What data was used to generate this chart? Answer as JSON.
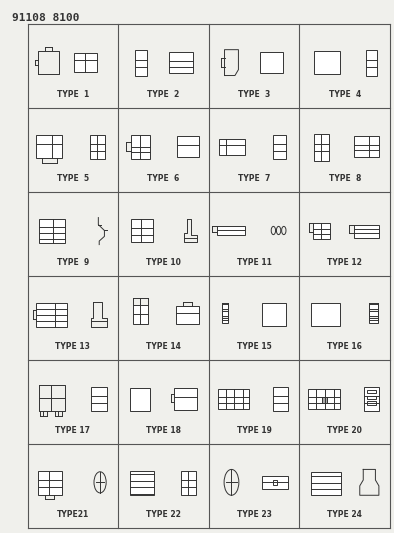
{
  "title": "91108 8100",
  "background": "#f0f0ec",
  "grid_rows": 6,
  "grid_cols": 4,
  "cell_labels": [
    "TYPE  1",
    "TYPE  2",
    "TYPE  3",
    "TYPE  4",
    "TYPE  5",
    "TYPE  6",
    "TYPE  7",
    "TYPE  8",
    "TYPE  9",
    "TYPE 10",
    "TYPE 11",
    "TYPE 12",
    "TYPE 13",
    "TYPE 14",
    "TYPE 15",
    "TYPE 16",
    "TYPE 17",
    "TYPE 18",
    "TYPE 19",
    "TYPE 20",
    "TYPE21",
    "TYPE 22",
    "TYPE 23",
    "TYPE 24"
  ],
  "label_fontsize": 5.5,
  "title_fontsize": 8,
  "line_color": "#333333",
  "cell_border_color": "#555555"
}
